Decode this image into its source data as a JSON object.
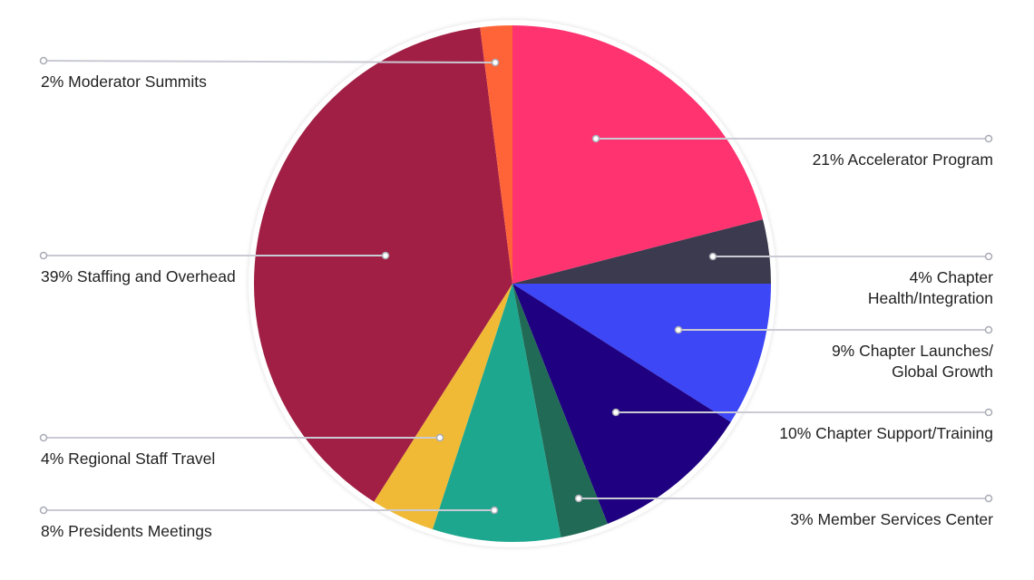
{
  "chart_data": {
    "type": "pie",
    "categories": [
      "Accelerator Program",
      "Chapter\nHealth/Integration",
      "Chapter Launches/\nGlobal Growth",
      "Chapter Support/Training",
      "Member Services Center",
      "Presidents Meetings",
      "Regional Staff Travel",
      "Staffing and Overhead",
      "Moderator Summits"
    ],
    "values": [
      21,
      4,
      9,
      10,
      3,
      8,
      4,
      39,
      2
    ],
    "value_labels": [
      "21%",
      "4%",
      "9%",
      "10%",
      "3%",
      "8%",
      "4%",
      "39%",
      "2%"
    ],
    "colors": [
      "#ff3370",
      "#3b3a4e",
      "#3d47f5",
      "#1e0080",
      "#216a55",
      "#1ea78f",
      "#f0ba36",
      "#a11f44",
      "#ff6438"
    ]
  }
}
